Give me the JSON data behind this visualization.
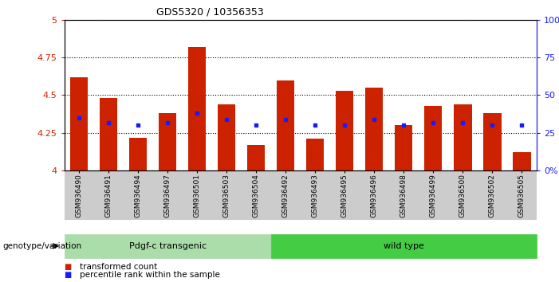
{
  "title": "GDS5320 / 10356353",
  "samples": [
    "GSM936490",
    "GSM936491",
    "GSM936494",
    "GSM936497",
    "GSM936501",
    "GSM936503",
    "GSM936504",
    "GSM936492",
    "GSM936493",
    "GSM936495",
    "GSM936496",
    "GSM936498",
    "GSM936499",
    "GSM936500",
    "GSM936502",
    "GSM936505"
  ],
  "bar_values": [
    4.62,
    4.48,
    4.22,
    4.38,
    4.82,
    4.44,
    4.17,
    4.6,
    4.21,
    4.53,
    4.55,
    4.3,
    4.43,
    4.44,
    4.38,
    4.12
  ],
  "percentile_values": [
    4.35,
    4.32,
    4.3,
    4.32,
    4.38,
    4.34,
    4.3,
    4.34,
    4.3,
    4.3,
    4.34,
    4.3,
    4.32,
    4.32,
    4.3,
    4.3
  ],
  "group1_label": "Pdgf-c transgenic",
  "group1_count": 7,
  "group2_label": "wild type",
  "group2_count": 9,
  "group_label": "genotype/variation",
  "bar_color": "#cc2200",
  "dot_color": "#1a1aff",
  "ylim_left": [
    4.0,
    5.0
  ],
  "ylim_right": [
    0,
    100
  ],
  "yticks_left": [
    4.0,
    4.25,
    4.5,
    4.75,
    5.0
  ],
  "ytick_labels_left": [
    "4",
    "4.25",
    "4.5",
    "4.75",
    "5"
  ],
  "yticks_right": [
    0,
    25,
    50,
    75,
    100
  ],
  "ytick_labels_right": [
    "0%",
    "25",
    "50",
    "75",
    "100%"
  ],
  "legend_items": [
    "transformed count",
    "percentile rank within the sample"
  ],
  "legend_colors": [
    "#cc2200",
    "#1a1aff"
  ],
  "bg_color": "#ffffff",
  "bar_width": 0.6
}
